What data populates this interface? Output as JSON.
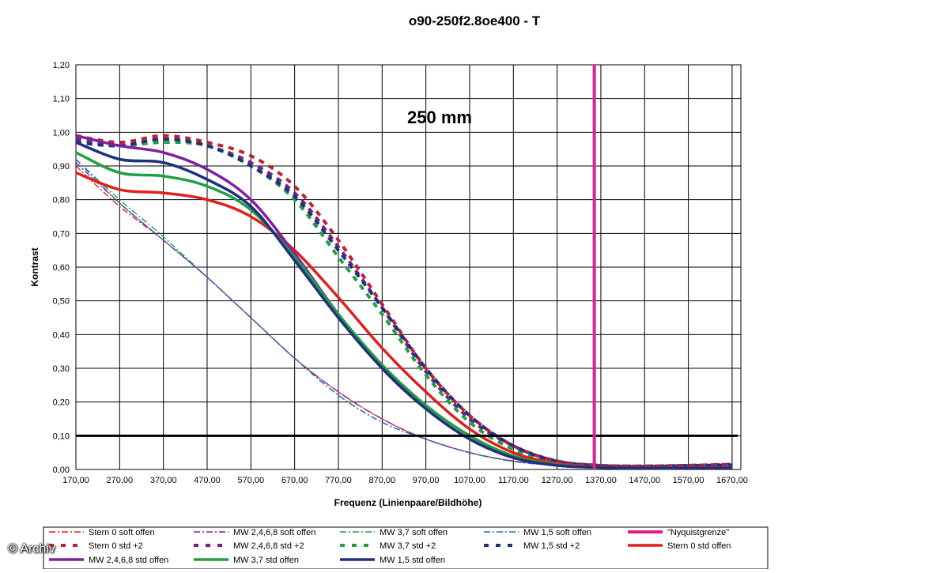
{
  "chart_data": {
    "type": "line",
    "title": "o90-250f2.8oe400 - T",
    "annotation": "250 mm",
    "xlabel": "Frequenz (Linienpaare/Bildhöhe)",
    "ylabel": "Kontrast",
    "xlim": [
      170,
      1690
    ],
    "ylim": [
      0,
      1.2
    ],
    "x_ticks": [
      "170,00",
      "270,00",
      "370,00",
      "470,00",
      "570,00",
      "670,00",
      "770,00",
      "870,00",
      "970,00",
      "1070,00",
      "1170,00",
      "1270,00",
      "1370,00",
      "1470,00",
      "1570,00",
      "1670,00"
    ],
    "y_ticks": [
      "0,00",
      "0,10",
      "0,20",
      "0,30",
      "0,40",
      "0,50",
      "0,60",
      "0,70",
      "0,80",
      "0,90",
      "1,00",
      "1,10",
      "1,20"
    ],
    "grid": true,
    "legend_position": "bottom",
    "reference_lines": [
      {
        "orientation": "horizontal",
        "value": 0.1,
        "color": "#000000"
      },
      {
        "orientation": "vertical",
        "value": 1355,
        "color": "#e0208e"
      }
    ],
    "series": [
      {
        "name": "Stern 0 soft offen",
        "color": "#e02020",
        "style": "dashdot",
        "x": [
          170,
          270,
          370,
          470,
          570,
          670,
          770,
          870,
          970,
          1070,
          1170,
          1270,
          1370,
          1470,
          1570,
          1670
        ],
        "y": [
          0.9,
          0.78,
          0.68,
          0.57,
          0.45,
          0.33,
          0.23,
          0.15,
          0.09,
          0.05,
          0.025,
          0.012,
          0.006,
          0.004,
          0.003,
          0.003
        ]
      },
      {
        "name": "MW 2,4,6,8 soft offen",
        "color": "#8020a0",
        "style": "dashdot",
        "x": [
          170,
          270,
          370,
          470,
          570,
          670,
          770,
          870,
          970,
          1070,
          1170,
          1270,
          1370,
          1470,
          1570,
          1670
        ],
        "y": [
          0.91,
          0.79,
          0.68,
          0.57,
          0.45,
          0.33,
          0.23,
          0.15,
          0.09,
          0.05,
          0.025,
          0.012,
          0.006,
          0.004,
          0.003,
          0.003
        ]
      },
      {
        "name": "MW 3,7 soft offen",
        "color": "#20a040",
        "style": "dashdot",
        "x": [
          170,
          270,
          370,
          470,
          570,
          670,
          770,
          870,
          970,
          1070,
          1170,
          1270,
          1370,
          1470,
          1570,
          1670
        ],
        "y": [
          0.92,
          0.8,
          0.69,
          0.57,
          0.45,
          0.33,
          0.22,
          0.14,
          0.09,
          0.05,
          0.024,
          0.012,
          0.006,
          0.004,
          0.003,
          0.003
        ]
      },
      {
        "name": "MW 1,5 soft offen",
        "color": "#2070b0",
        "style": "dashdot",
        "x": [
          170,
          270,
          370,
          470,
          570,
          670,
          770,
          870,
          970,
          1070,
          1170,
          1270,
          1370,
          1470,
          1570,
          1670
        ],
        "y": [
          0.92,
          0.79,
          0.68,
          0.57,
          0.45,
          0.33,
          0.22,
          0.14,
          0.09,
          0.05,
          0.024,
          0.012,
          0.006,
          0.004,
          0.003,
          0.003
        ]
      },
      {
        "name": "\"Nyquistgrenze\"",
        "color": "#e0208e",
        "style": "solid-thick",
        "x": [
          1355,
          1355
        ],
        "y": [
          0,
          1.2
        ]
      },
      {
        "name": "Stern 0 std +2",
        "color": "#c02030",
        "style": "dash",
        "x": [
          170,
          270,
          370,
          470,
          570,
          670,
          770,
          870,
          970,
          1070,
          1170,
          1270,
          1370,
          1470,
          1570,
          1670
        ],
        "y": [
          0.99,
          0.97,
          0.99,
          0.97,
          0.93,
          0.84,
          0.68,
          0.49,
          0.3,
          0.16,
          0.07,
          0.025,
          0.012,
          0.01,
          0.012,
          0.015
        ]
      },
      {
        "name": "MW 2,4,6,8 std +2",
        "color": "#7a2080",
        "style": "dash",
        "x": [
          170,
          270,
          370,
          470,
          570,
          670,
          770,
          870,
          970,
          1070,
          1170,
          1270,
          1370,
          1470,
          1570,
          1670
        ],
        "y": [
          0.98,
          0.96,
          0.98,
          0.96,
          0.91,
          0.82,
          0.66,
          0.48,
          0.29,
          0.15,
          0.07,
          0.025,
          0.012,
          0.01,
          0.012,
          0.015
        ]
      },
      {
        "name": "MW 3,7 std +2",
        "color": "#20a040",
        "style": "dash",
        "x": [
          170,
          270,
          370,
          470,
          570,
          670,
          770,
          870,
          970,
          1070,
          1170,
          1270,
          1370,
          1470,
          1570,
          1670
        ],
        "y": [
          0.97,
          0.96,
          0.97,
          0.96,
          0.9,
          0.8,
          0.63,
          0.46,
          0.28,
          0.14,
          0.06,
          0.022,
          0.01,
          0.008,
          0.01,
          0.012
        ]
      },
      {
        "name": "MW 1,5 std +2",
        "color": "#203080",
        "style": "dash",
        "x": [
          170,
          270,
          370,
          470,
          570,
          670,
          770,
          870,
          970,
          1070,
          1170,
          1270,
          1370,
          1470,
          1570,
          1670
        ],
        "y": [
          0.97,
          0.96,
          0.98,
          0.96,
          0.9,
          0.81,
          0.65,
          0.48,
          0.3,
          0.16,
          0.07,
          0.024,
          0.011,
          0.009,
          0.011,
          0.013
        ]
      },
      {
        "name": "Stern 0 std offen",
        "color": "#e02020",
        "style": "solid",
        "x": [
          170,
          270,
          370,
          470,
          570,
          670,
          770,
          870,
          970,
          1070,
          1170,
          1270,
          1370,
          1470,
          1570,
          1670
        ],
        "y": [
          0.88,
          0.83,
          0.82,
          0.8,
          0.75,
          0.65,
          0.51,
          0.36,
          0.23,
          0.12,
          0.05,
          0.018,
          0.008,
          0.006,
          0.006,
          0.006
        ]
      },
      {
        "name": "MW 2,4,6,8 std offen",
        "color": "#8020a0",
        "style": "solid",
        "x": [
          170,
          270,
          370,
          470,
          570,
          670,
          770,
          870,
          970,
          1070,
          1170,
          1270,
          1370,
          1470,
          1570,
          1670
        ],
        "y": [
          0.99,
          0.96,
          0.94,
          0.89,
          0.8,
          0.64,
          0.46,
          0.3,
          0.18,
          0.09,
          0.035,
          0.012,
          0.006,
          0.004,
          0.004,
          0.004
        ]
      },
      {
        "name": "MW 3,7 std offen",
        "color": "#20a040",
        "style": "solid",
        "x": [
          170,
          270,
          370,
          470,
          570,
          670,
          770,
          870,
          970,
          1070,
          1170,
          1270,
          1370,
          1470,
          1570,
          1670
        ],
        "y": [
          0.94,
          0.88,
          0.87,
          0.84,
          0.77,
          0.63,
          0.46,
          0.31,
          0.19,
          0.1,
          0.04,
          0.014,
          0.006,
          0.004,
          0.004,
          0.004
        ]
      },
      {
        "name": "MW 1,5 std offen",
        "color": "#203080",
        "style": "solid",
        "x": [
          170,
          270,
          370,
          470,
          570,
          670,
          770,
          870,
          970,
          1070,
          1170,
          1270,
          1370,
          1470,
          1570,
          1670
        ],
        "y": [
          0.97,
          0.92,
          0.91,
          0.86,
          0.78,
          0.62,
          0.45,
          0.3,
          0.18,
          0.09,
          0.035,
          0.012,
          0.006,
          0.004,
          0.004,
          0.004
        ]
      }
    ]
  },
  "watermark": "© Archiv"
}
